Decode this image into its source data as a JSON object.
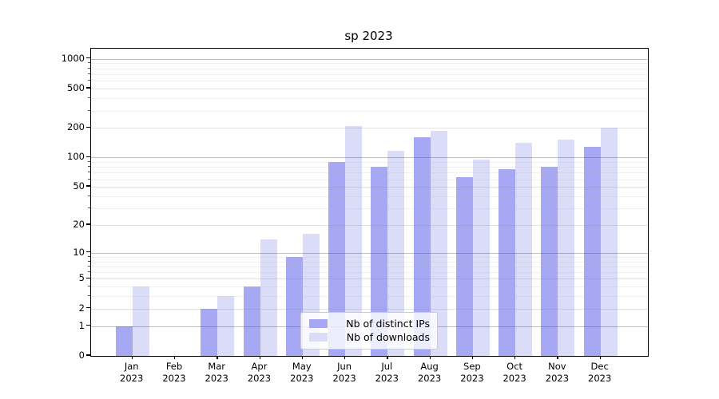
{
  "figure": {
    "title": "sp 2023"
  },
  "legend": {
    "items": [
      {
        "label": "Nb of distinct IPs",
        "color": "#a6a8f3"
      },
      {
        "label": "Nb of downloads",
        "color": "#dadcf8"
      }
    ]
  },
  "chart_data": {
    "type": "bar",
    "title": "sp 2023",
    "categories": [
      "Jan 2023",
      "Feb 2023",
      "Mar 2023",
      "Apr 2023",
      "May 2023",
      "Jun 2023",
      "Jul 2023",
      "Aug 2023",
      "Sep 2023",
      "Oct 2023",
      "Nov 2023",
      "Dec 2023"
    ],
    "series": [
      {
        "name": "Nb of distinct IPs",
        "color": "#a6a8f3",
        "values": [
          1,
          0,
          2,
          4,
          9,
          90,
          81,
          160,
          63,
          76,
          80,
          128
        ]
      },
      {
        "name": "Nb of downloads",
        "color": "#dadcf8",
        "values": [
          4,
          0,
          3,
          14,
          16,
          210,
          117,
          185,
          95,
          140,
          152,
          200
        ]
      }
    ],
    "xlabel": "",
    "ylabel": "",
    "yscale": "log1p",
    "ylim": [
      0,
      1266
    ],
    "y_ticks": [
      0,
      1,
      2,
      5,
      10,
      20,
      50,
      100,
      200,
      500,
      1000
    ],
    "y_decade_ticks": [
      1,
      10,
      100,
      1000
    ],
    "y_minor_ticks": [
      3,
      4,
      6,
      7,
      8,
      9,
      30,
      40,
      60,
      70,
      80,
      90,
      300,
      400,
      600,
      700,
      800,
      900
    ],
    "grid": true,
    "legend_position": "lower center"
  }
}
